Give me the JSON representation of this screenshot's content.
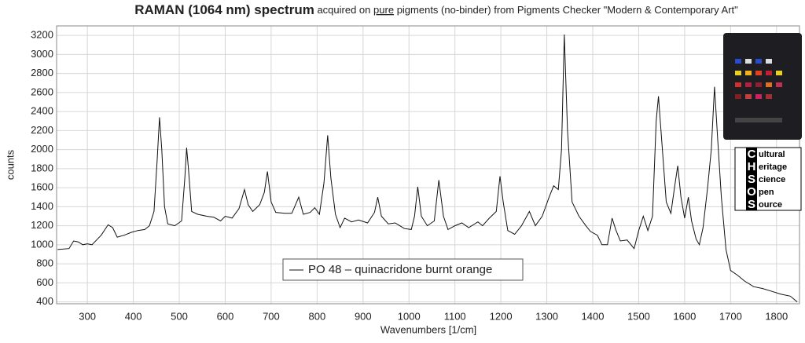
{
  "chart_data": {
    "type": "line",
    "title_main": "RAMAN (1064 nm) spectrum",
    "title_pre": "acquired on",
    "title_underlined": "pure",
    "title_post": "pigments (no-binder) from Pigments Checker \"Modern & Contemporary Art\"",
    "x_label": "Wavenumbers [1/cm]",
    "y_label": "counts",
    "xlim": [
      233,
      1850
    ],
    "ylim": [
      380,
      3300
    ],
    "xticks": [
      300,
      400,
      500,
      600,
      700,
      800,
      900,
      1000,
      1100,
      1200,
      1300,
      1400,
      1500,
      1600,
      1700,
      1800
    ],
    "yticks": [
      400,
      600,
      800,
      1000,
      1200,
      1400,
      1600,
      1800,
      2000,
      2200,
      2400,
      2600,
      2800,
      3000,
      3200
    ],
    "grid": true,
    "legend": "bottom-center",
    "x": [
      235,
      260,
      270,
      280,
      290,
      300,
      310,
      320,
      330,
      345,
      355,
      365,
      380,
      395,
      410,
      425,
      435,
      445,
      452,
      457,
      462,
      468,
      475,
      490,
      505,
      512,
      516,
      520,
      527,
      540,
      560,
      575,
      590,
      600,
      615,
      630,
      642,
      650,
      660,
      675,
      685,
      692,
      700,
      710,
      730,
      745,
      760,
      770,
      785,
      795,
      805,
      815,
      823,
      830,
      840,
      850,
      860,
      875,
      890,
      910,
      925,
      932,
      940,
      955,
      970,
      990,
      1005,
      1012,
      1019,
      1027,
      1040,
      1055,
      1065,
      1075,
      1085,
      1100,
      1115,
      1130,
      1150,
      1160,
      1175,
      1190,
      1198,
      1205,
      1215,
      1230,
      1245,
      1262,
      1275,
      1290,
      1305,
      1315,
      1325,
      1332,
      1338,
      1345,
      1355,
      1370,
      1385,
      1395,
      1410,
      1420,
      1432,
      1442,
      1450,
      1460,
      1475,
      1490,
      1500,
      1510,
      1520,
      1530,
      1538,
      1543,
      1550,
      1560,
      1570,
      1578,
      1585,
      1592,
      1600,
      1608,
      1615,
      1625,
      1632,
      1640,
      1650,
      1658,
      1665,
      1672,
      1680,
      1690,
      1700,
      1715,
      1730,
      1750,
      1770,
      1790,
      1810,
      1830,
      1845
    ],
    "series": [
      {
        "name": "PO 48 – quinacridone burnt orange",
        "color": "#111111",
        "values": [
          950,
          960,
          1040,
          1030,
          1000,
          1010,
          1000,
          1050,
          1100,
          1210,
          1180,
          1080,
          1100,
          1130,
          1150,
          1160,
          1200,
          1350,
          1900,
          2340,
          2000,
          1400,
          1220,
          1200,
          1250,
          1700,
          2020,
          1800,
          1350,
          1320,
          1300,
          1290,
          1250,
          1300,
          1280,
          1380,
          1580,
          1420,
          1350,
          1420,
          1550,
          1770,
          1450,
          1340,
          1330,
          1330,
          1500,
          1320,
          1340,
          1390,
          1320,
          1650,
          2150,
          1700,
          1320,
          1180,
          1280,
          1240,
          1260,
          1230,
          1340,
          1500,
          1300,
          1220,
          1230,
          1170,
          1160,
          1300,
          1610,
          1300,
          1200,
          1250,
          1680,
          1300,
          1160,
          1200,
          1230,
          1180,
          1240,
          1200,
          1280,
          1350,
          1720,
          1450,
          1150,
          1110,
          1200,
          1350,
          1200,
          1300,
          1500,
          1620,
          1580,
          2000,
          3210,
          2200,
          1450,
          1300,
          1200,
          1140,
          1100,
          1000,
          1000,
          1280,
          1160,
          1040,
          1050,
          960,
          1150,
          1300,
          1150,
          1300,
          2300,
          2560,
          2100,
          1450,
          1330,
          1600,
          1830,
          1500,
          1280,
          1500,
          1250,
          1060,
          1000,
          1180,
          1600,
          2000,
          2660,
          2100,
          1500,
          950,
          730,
          680,
          620,
          560,
          540,
          510,
          480,
          460,
          400
        ]
      }
    ]
  },
  "logo": {
    "initials": [
      "C",
      "H",
      "S",
      "O",
      "S"
    ],
    "words": [
      "ultural",
      "eritage",
      "cience",
      "pen",
      "ource"
    ]
  }
}
